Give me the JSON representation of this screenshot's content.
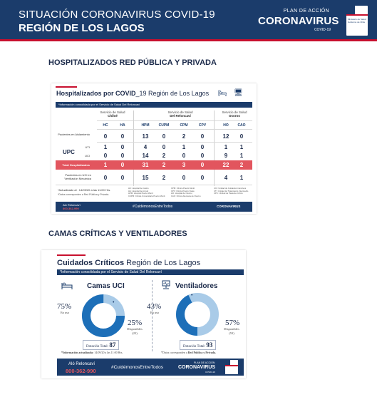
{
  "header": {
    "line1": "SITUACIÓN CORONAVIRUS COVID-19",
    "line2": "REGIÓN DE LOS LAGOS",
    "brand_plan": "PLAN DE ACCIÓN",
    "brand_name": "CORONAVIRUS",
    "brand_sub": "COVID-19",
    "gov_text": "Ministerio de Salud Gobierno de Chile"
  },
  "section1_title": "HOSPITALIZADOS RED PÚBLICA Y PRIVADA",
  "section2_title": "CAMAS CRÍTICAS Y VENTILADORES",
  "hosp_card": {
    "title_bold": "Hospitalizados por COVID",
    "title_rest": "_19 Región de Los Lagos",
    "info": "*Información consolidada por el Servicio de Salud Del Reloncaví",
    "groups": [
      {
        "line1": "Servicio de Salud",
        "line2": "Chiloé"
      },
      {
        "line1": "Servicio de Salud",
        "line2": "Del Reloncaví"
      },
      {
        "line1": "Servicio de Salud",
        "line2": "Osorno"
      }
    ],
    "columns": [
      "HC",
      "HA",
      "HPM",
      "CUPM",
      "CPM",
      "CPV",
      "HO",
      "CAO"
    ],
    "row_labels": {
      "aislamiento": "Pacientes en Aislamiento",
      "upc": "UPC",
      "uti": "UTI",
      "uci": "UCI",
      "total": "Total Hospitalizados",
      "vm": "Pacientes en UCI en Ventilación Mecánica"
    },
    "rows": {
      "aislamiento": [
        "0",
        "0",
        "13",
        "0",
        "2",
        "0",
        "12",
        "0"
      ],
      "uti": [
        "1",
        "0",
        "4",
        "0",
        "1",
        "0",
        "1",
        "1"
      ],
      "uci": [
        "0",
        "0",
        "14",
        "2",
        "0",
        "0",
        "9",
        "1"
      ],
      "total": [
        "1",
        "0",
        "31",
        "2",
        "3",
        "0",
        "22",
        "2"
      ],
      "vm": [
        "0",
        "0",
        "15",
        "2",
        "0",
        "0",
        "4",
        "1"
      ]
    },
    "footnote1": "*Actualizado al : 14/09/20 a las 11:00 Hrs.",
    "footnote2": "*Datos corresponden a Red Pública y Privada.",
    "legend_col1": "HC: Hospital de Castro\nHA: Hospital de Ancud\nHPM: Hospital Puerto Montt\nCUPM: Clínica Universitaria Puerto Montt",
    "legend_col2": "CPM: Clínica Puerto Montt\nCPV: Clínica Puerto Varas\nHO: Hospital de Osorno\nCAO: Clínica Alemana de Osorno",
    "legend_col3": "UCI: Unidad de Cuidados Intensivos\nUTI: Unidad de Tratamiento Intermedio\nUPC: Unidad de Paciente Crítico",
    "bottom_alo": "Aló Reloncaví",
    "bottom_tel": "800-362-990",
    "bottom_hash": "#CuidémonosEntreTodos",
    "bottom_brand": "CORONAVIRUS"
  },
  "critical_card": {
    "title_bold": "Cuidados Críticos",
    "title_rest": " Región de Los Lagos",
    "info": "*Información consolidada por el Servicio de Salud Del Reloncaví",
    "uci": {
      "label": "Camas UCI",
      "in_use_pct": "75%",
      "in_use_label": "En uso",
      "available_pct": "25%",
      "available_label": "Disponibles",
      "available_count": "(22)",
      "total_label": "Dotación Total:",
      "total_value": "87",
      "in_use_fraction": 0.75
    },
    "vent": {
      "label": "Ventiladores",
      "in_use_pct": "43%",
      "in_use_label": "En uso",
      "available_pct": "57%",
      "available_label": "Disponibles",
      "available_count": "(53)",
      "total_label": "Dotación Total:",
      "total_value": "93",
      "in_use_fraction": 0.43
    },
    "footnote_left_bold": "*Información actualizada:",
    "footnote_left_rest": " 14/09/20 a las 11:00 Hrs.",
    "footnote_right_rest": "*Datos corresponden a ",
    "footnote_right_bold": "Red Pública y Privada.",
    "bottom_alo": "Aló Reloncaví",
    "bottom_tel": "800-362-990",
    "bottom_hash": "#CuidémonosEntreTodos",
    "bottom_plan": "PLAN DE ACCIÓN",
    "bottom_brand": "CORONAVIRUS",
    "bottom_brand_sub": "COVID-19"
  },
  "colors": {
    "navy": "#1b3c6b",
    "red": "#c8102e",
    "donut_dark": "#1d6fb8",
    "donut_light": "#a9cbe8"
  }
}
